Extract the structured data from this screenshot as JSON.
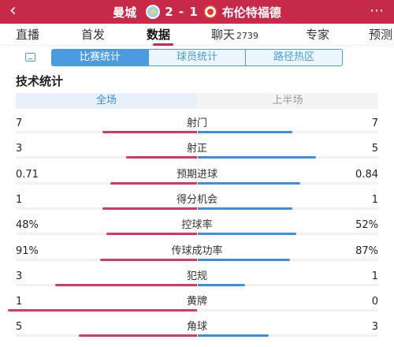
{
  "header": {
    "back_icon": "chevron-left-icon",
    "home_team": "曼城",
    "score": "2 - 1",
    "away_team": "布伦特福德",
    "home_crest_icon": "manchester-city-crest-icon",
    "away_crest_icon": "brentford-crest-icon",
    "more_icon": "more-icon",
    "colors": {
      "bar": "#c62a48"
    }
  },
  "tabs": [
    {
      "label": "直播",
      "count": ""
    },
    {
      "label": "首发",
      "count": ""
    },
    {
      "label": "数据",
      "count": "",
      "active": true
    },
    {
      "label": "聊天",
      "count": "2739"
    },
    {
      "label": "专家",
      "count": ""
    },
    {
      "label": "预测",
      "count": ""
    }
  ],
  "subtabs": {
    "icon": "stats-icon",
    "items": [
      {
        "label": "比赛统计",
        "active": true
      },
      {
        "label": "球员统计"
      },
      {
        "label": "路径热区"
      }
    ]
  },
  "section_title": "技术统计",
  "periods": [
    {
      "label": "全场",
      "active": true
    },
    {
      "label": "上半场"
    }
  ],
  "colors": {
    "home_bar": "#d63a64",
    "away_bar": "#3b8ee0",
    "accent": "#4a9be0"
  },
  "stats": [
    {
      "label": "射门",
      "home": "7",
      "away": "7",
      "home_share": 0.5,
      "away_share": 0.5
    },
    {
      "label": "射正",
      "home": "3",
      "away": "5",
      "home_share": 0.375,
      "away_share": 0.625
    },
    {
      "label": "预期进球",
      "home": "0.71",
      "away": "0.84",
      "home_share": 0.458,
      "away_share": 0.542
    },
    {
      "label": "得分机会",
      "home": "1",
      "away": "1",
      "home_share": 0.5,
      "away_share": 0.5
    },
    {
      "label": "控球率",
      "home": "48%",
      "away": "52%",
      "home_share": 0.48,
      "away_share": 0.52
    },
    {
      "label": "传球成功率",
      "home": "91%",
      "away": "87%",
      "home_share": 0.511,
      "away_share": 0.489
    },
    {
      "label": "犯规",
      "home": "3",
      "away": "1",
      "home_share": 0.75,
      "away_share": 0.25
    },
    {
      "label": "黄牌",
      "home": "1",
      "away": "0",
      "home_share": 1.0,
      "away_share": 0.0
    },
    {
      "label": "角球",
      "home": "5",
      "away": "3",
      "home_share": 0.625,
      "away_share": 0.375
    }
  ]
}
